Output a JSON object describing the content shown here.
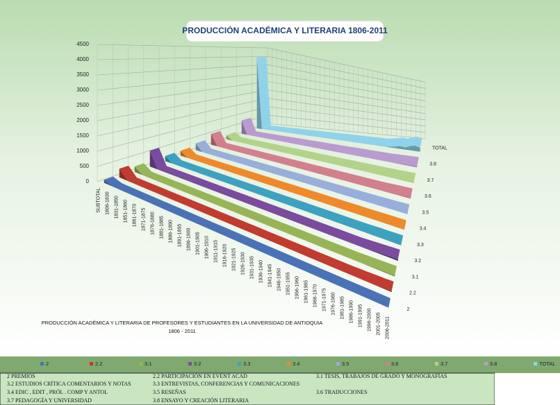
{
  "chart_data": {
    "type": "ribbon3d",
    "title": "PRODUCCIÓN ACADÉMICA Y LITERARIA 1806-2011",
    "annotation": [
      "PRODUCCIÓN ACADÉMICA Y LITERARIA DE PROFESORES Y ESTUDIANTES EN LA UNIVERSIDAD DE ANTIOQUIA",
      "1806 - 2011"
    ],
    "categories": [
      "SUBTOTAL",
      "1806-1830",
      "1831-1850",
      "1851-1860",
      "1861-1870",
      "1871-1875",
      "1876-1880",
      "1881-1885",
      "1886-1890",
      "1891-1895",
      "1896-1900",
      "1901-1905",
      "1906-1910",
      "1911-1915",
      "1916-1920",
      "1921-1925",
      "1926-1930",
      "1931-1935",
      "1936-1940",
      "1941-1945",
      "1946-1950",
      "1951-1955",
      "1956-1960",
      "1961-1965",
      "1966-1970",
      "1971-1975",
      "1976-1980",
      "1981-1985",
      "1986-1990",
      "1991-1995",
      "1996-2000",
      "2001-2005",
      "2006-2011"
    ],
    "series": [
      {
        "name": "2",
        "color": "#4a72b6",
        "values": [
          100,
          0,
          0,
          0,
          0,
          0,
          0,
          0,
          0,
          0,
          0,
          0,
          0,
          0,
          0,
          0,
          0,
          0,
          0,
          0,
          0,
          0,
          0,
          0,
          0,
          0,
          0,
          0,
          5,
          5,
          10,
          10,
          10
        ]
      },
      {
        "name": "2.2",
        "color": "#c23b30",
        "values": [
          300,
          0,
          0,
          0,
          0,
          0,
          0,
          0,
          0,
          0,
          0,
          0,
          0,
          0,
          0,
          0,
          0,
          0,
          0,
          0,
          0,
          0,
          0,
          0,
          0,
          0,
          0,
          0,
          10,
          20,
          30,
          40,
          60
        ]
      },
      {
        "name": "3.1",
        "color": "#97b556",
        "values": [
          200,
          0,
          0,
          0,
          0,
          0,
          0,
          0,
          0,
          0,
          0,
          0,
          0,
          0,
          0,
          0,
          0,
          0,
          0,
          0,
          0,
          0,
          0,
          0,
          0,
          0,
          0,
          0,
          10,
          20,
          30,
          40,
          50
        ]
      },
      {
        "name": "3.2",
        "color": "#7a4b9e",
        "values": [
          600,
          0,
          0,
          0,
          0,
          0,
          0,
          0,
          0,
          0,
          0,
          0,
          0,
          0,
          0,
          0,
          0,
          0,
          0,
          0,
          0,
          0,
          0,
          0,
          0,
          0,
          0,
          0,
          20,
          40,
          60,
          80,
          100
        ]
      },
      {
        "name": "3.3",
        "color": "#3da2bf",
        "values": [
          200,
          0,
          0,
          0,
          0,
          0,
          0,
          0,
          0,
          0,
          0,
          0,
          0,
          0,
          0,
          0,
          0,
          0,
          0,
          0,
          0,
          0,
          0,
          0,
          0,
          0,
          0,
          0,
          10,
          20,
          20,
          30,
          30
        ]
      },
      {
        "name": "3.4",
        "color": "#ee8a2b",
        "values": [
          200,
          0,
          0,
          0,
          0,
          0,
          0,
          0,
          0,
          0,
          0,
          0,
          0,
          0,
          0,
          0,
          0,
          0,
          0,
          0,
          0,
          0,
          0,
          0,
          0,
          0,
          0,
          0,
          5,
          10,
          10,
          10,
          10
        ]
      },
      {
        "name": "3.5",
        "color": "#98afdb",
        "values": [
          300,
          0,
          0,
          0,
          0,
          0,
          0,
          0,
          0,
          0,
          0,
          0,
          0,
          0,
          0,
          0,
          0,
          0,
          0,
          0,
          0,
          0,
          0,
          0,
          0,
          0,
          0,
          0,
          5,
          10,
          10,
          20,
          20
        ]
      },
      {
        "name": "3.6",
        "color": "#d27f8e",
        "values": [
          500,
          0,
          0,
          0,
          0,
          0,
          0,
          0,
          0,
          0,
          0,
          0,
          0,
          0,
          0,
          0,
          0,
          0,
          0,
          0,
          0,
          0,
          0,
          0,
          0,
          0,
          0,
          0,
          10,
          20,
          30,
          40,
          50
        ]
      },
      {
        "name": "3.7",
        "color": "#b4d38a",
        "values": [
          200,
          0,
          0,
          0,
          0,
          0,
          0,
          0,
          0,
          0,
          0,
          0,
          0,
          0,
          0,
          0,
          0,
          0,
          0,
          0,
          0,
          0,
          0,
          0,
          0,
          0,
          0,
          0,
          10,
          10,
          20,
          20,
          30
        ]
      },
      {
        "name": "3.8",
        "color": "#b99bd0",
        "values": [
          700,
          0,
          0,
          0,
          0,
          0,
          0,
          0,
          0,
          0,
          0,
          0,
          0,
          0,
          0,
          0,
          0,
          0,
          0,
          0,
          0,
          0,
          0,
          0,
          0,
          0,
          0,
          0,
          20,
          30,
          40,
          50,
          60
        ]
      },
      {
        "name": "TOTAL",
        "color": "#8fd3ea",
        "values": [
          4000,
          0,
          0,
          0,
          0,
          0,
          0,
          0,
          0,
          0,
          0,
          0,
          0,
          0,
          0,
          0,
          0,
          0,
          0,
          0,
          0,
          0,
          0,
          0,
          0,
          0,
          50,
          100,
          200,
          150,
          300,
          400,
          300
        ]
      }
    ],
    "ylim": [
      0,
      4500
    ],
    "yticks": [
      0,
      500,
      1000,
      1500,
      2000,
      2500,
      3000,
      3500,
      4000,
      4500
    ],
    "grid": true,
    "notes": [
      "2 PREMIOS",
      "2.2 PARTICIPACIÓN EN EVENT ACAD",
      "3.1 TESIS, TRABAJOS DE GRADO Y MONOGRAFÍAS",
      "3.2 ESTUDIOS CRÍTICA COMENTARIOS Y NOTAS",
      "3.3 ENTREVISTAS, CONFERENCIAS Y COMUNICACIONES",
      "3.4 EDIC , EDIT , PRÓL . COMP Y ANTOL",
      "3.5 RESEÑAS",
      "3.6 TRADUCCIONES",
      "3.7 PEDAGOGÍA Y UNIVERSIDAD",
      "3.8 ENSAYO Y CREACIÓN LITERARIA"
    ]
  }
}
